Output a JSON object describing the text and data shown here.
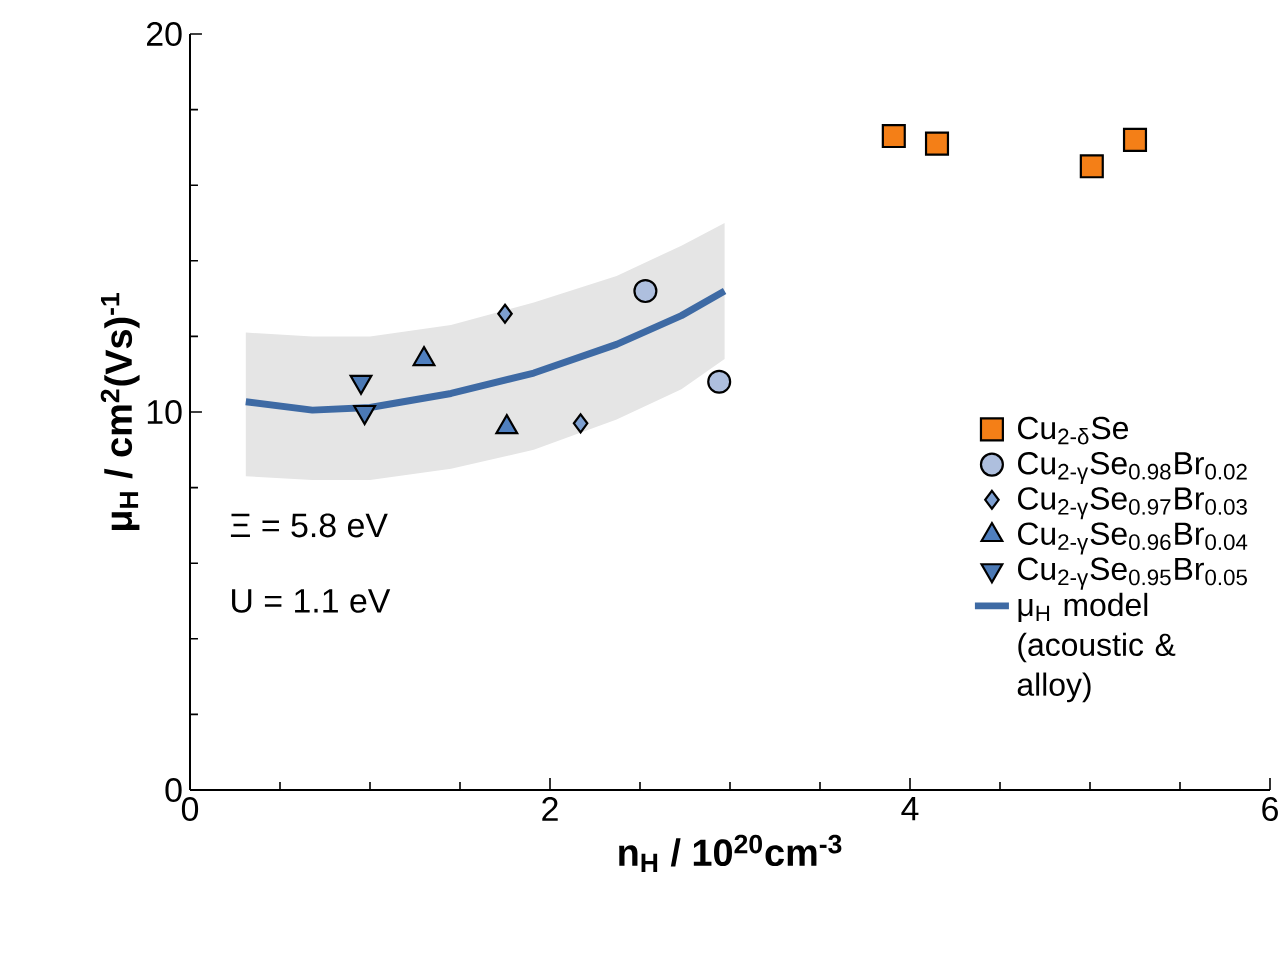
{
  "chart_data": {
    "type": "scatter",
    "xlabel": "n$_{H}$ / 10$^{20}$cm$^{-3}$",
    "ylabel": "μ$_{H}$ / cm$^{2}$(Vs)$^{-1}$",
    "xlim": [
      0,
      6
    ],
    "xticks": [
      0,
      2,
      4,
      6
    ],
    "ylim": [
      0,
      20
    ],
    "yticks": [
      0,
      10,
      20
    ],
    "grid": false,
    "legend": "right",
    "annotations": [
      "Ξ = 5.8 eV",
      "U = 1.1 eV"
    ],
    "series": [
      {
        "name": "Cu$_{2-δ}$Se",
        "color": "#f47f17",
        "marker": "square",
        "x": [
          3.91,
          4.15,
          5.01,
          5.25
        ],
        "values": [
          17.3,
          17.1,
          16.5,
          17.2
        ]
      },
      {
        "name": "Cu$_{2-γ}$Se$_{0.98}$Br$_{0.02}$",
        "color": "#aebfde",
        "marker": "circle",
        "x": [
          2.53,
          2.94
        ],
        "values": [
          13.2,
          10.8
        ]
      },
      {
        "name": "Cu$_{2-γ}$Se$_{0.97}$Br$_{0.03}$",
        "color": "#7d9fd0",
        "marker": "diamond",
        "x": [
          1.75,
          2.17
        ],
        "values": [
          12.6,
          9.7
        ]
      },
      {
        "name": "Cu$_{2-γ}$Se$_{0.96}$Br$_{0.04}$",
        "color": "#4f7fbf",
        "marker": "triangle",
        "x": [
          1.3,
          1.76
        ],
        "values": [
          11.4,
          9.6
        ]
      },
      {
        "name": "Cu$_{2-γ}$Se$_{0.95}$Br$_{0.05}$",
        "color": "#4b79b5",
        "marker": "triangle-down",
        "x": [
          0.95,
          0.97
        ],
        "values": [
          10.8,
          10.0
        ]
      },
      {
        "name": "μ$_{H}$ model (acoustic & alloy)",
        "type": "line",
        "color": "#3e6aa4",
        "x": [
          0.31,
          0.68,
          1.0,
          1.45,
          1.91,
          2.37,
          2.73,
          2.97
        ],
        "values": [
          10.27,
          10.05,
          10.12,
          10.49,
          11.03,
          11.79,
          12.55,
          13.2
        ],
        "lower": [
          8.3,
          8.2,
          8.2,
          8.5,
          9.0,
          9.8,
          10.6,
          11.4
        ],
        "upper": [
          12.1,
          12.0,
          12.0,
          12.3,
          12.9,
          13.6,
          14.4,
          15.0
        ]
      }
    ]
  }
}
